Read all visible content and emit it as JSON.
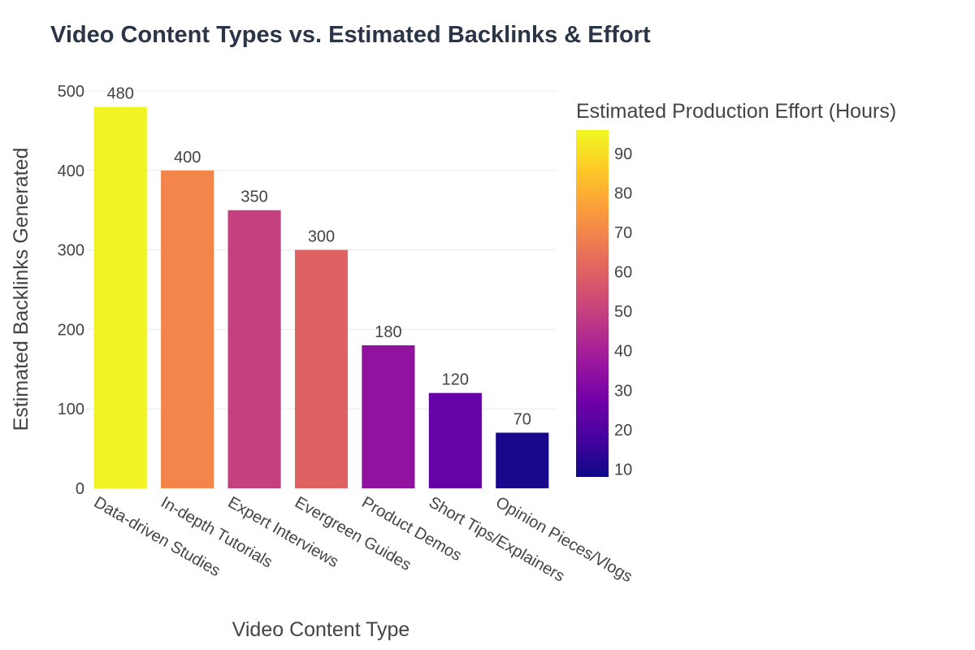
{
  "chart_data": {
    "type": "bar",
    "title": "Video Content Types vs. Estimated Backlinks & Effort",
    "xlabel": "Video Content Type",
    "ylabel": "Estimated Backlinks Generated",
    "ylim": [
      0,
      500
    ],
    "y_ticks": [
      0,
      100,
      200,
      300,
      400,
      500
    ],
    "grid": true,
    "categories": [
      "Data-driven Studies",
      "In-depth Tutorials",
      "Expert Interviews",
      "Evergreen Guides",
      "Product Demos",
      "Short Tips/Explainers",
      "Opinion Pieces/Vlogs"
    ],
    "values": [
      480,
      400,
      350,
      300,
      180,
      120,
      70
    ],
    "data_labels": [
      "480",
      "400",
      "350",
      "300",
      "180",
      "120",
      "70"
    ],
    "color_values": [
      95,
      70,
      50,
      60,
      35,
      25,
      10
    ],
    "colorbar": {
      "title": "Estimated Production Effort (Hours)",
      "range": [
        8,
        96
      ],
      "ticks": [
        10,
        20,
        30,
        40,
        50,
        60,
        70,
        80,
        90
      ],
      "colorscale": "plasma",
      "placement": "right"
    }
  }
}
